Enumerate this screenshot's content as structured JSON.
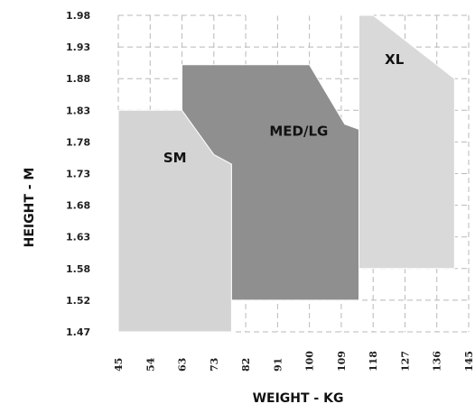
{
  "chart_data": {
    "type": "area",
    "xlabel": "WEIGHT - KG",
    "ylabel": "HEIGHT - M",
    "x_ticks": [
      "45",
      "54",
      "63",
      "73",
      "82",
      "91",
      "100",
      "109",
      "118",
      "127",
      "136",
      "145"
    ],
    "y_ticks": [
      "1.98",
      "1.93",
      "1.88",
      "1.83",
      "1.78",
      "1.73",
      "1.68",
      "1.63",
      "1.58",
      "1.52",
      "1.47"
    ],
    "xlim": [
      45,
      145
    ],
    "ylim": [
      1.47,
      1.98
    ],
    "grid": true,
    "regions": [
      {
        "name": "XL",
        "color": "#d9d9d9",
        "points": [
          [
            82,
            1.98
          ],
          [
            118,
            1.98
          ],
          [
            141,
            1.88
          ],
          [
            141,
            1.58
          ],
          [
            114,
            1.58
          ],
          [
            114,
            1.98
          ],
          [
            82,
            1.98
          ]
        ]
      },
      {
        "name": "SM",
        "color": "#d4d4d4",
        "points": [
          [
            45,
            1.83
          ],
          [
            63,
            1.83
          ],
          [
            73,
            1.76
          ],
          [
            78,
            1.745
          ],
          [
            78,
            1.47
          ],
          [
            45,
            1.47
          ]
        ]
      },
      {
        "name": "MED/LG",
        "color": "#8f8f8f",
        "points": [
          [
            63,
            1.902
          ],
          [
            100,
            1.902
          ],
          [
            110,
            1.808
          ],
          [
            114,
            1.8
          ],
          [
            114,
            1.52
          ],
          [
            78,
            1.52
          ],
          [
            78,
            1.745
          ],
          [
            73,
            1.76
          ],
          [
            63,
            1.83
          ]
        ]
      }
    ],
    "region_labels": [
      {
        "text": "XL",
        "x": 124,
        "y": 1.903
      },
      {
        "text": "MED/LG",
        "x": 97,
        "y": 1.79
      },
      {
        "text": "SM",
        "x": 61,
        "y": 1.748
      }
    ]
  }
}
